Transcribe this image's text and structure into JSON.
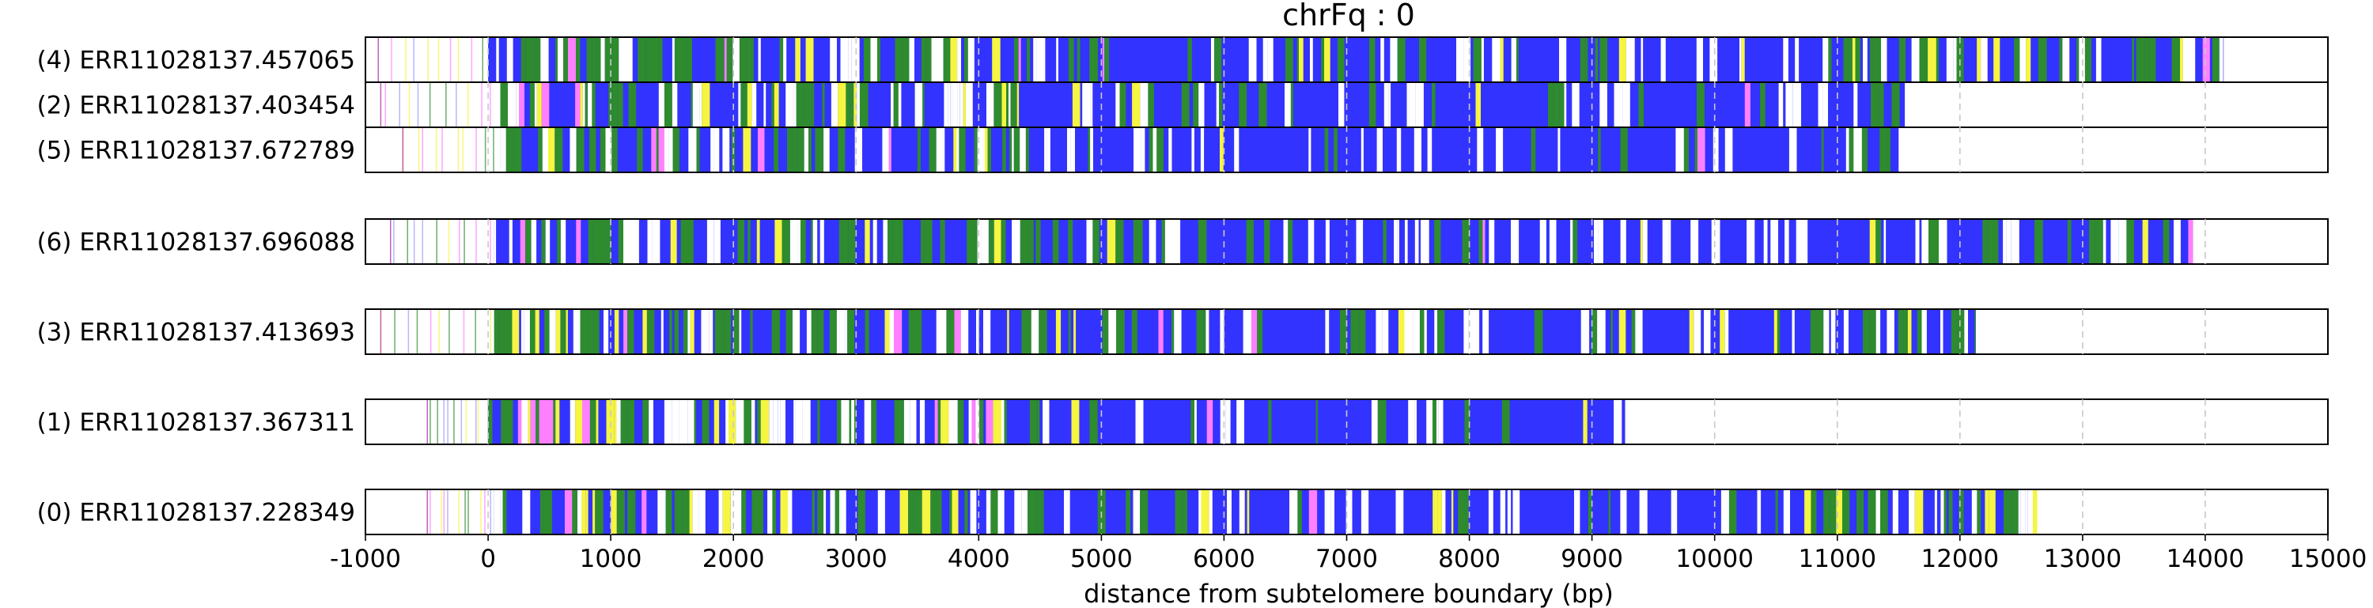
{
  "chart_data": {
    "type": "heatmap",
    "title": "chrFq : 0",
    "xlabel": "distance from subtelomere boundary (bp)",
    "ylabel": "",
    "xlim": [
      -1000,
      15000
    ],
    "x_ticks": [
      -1000,
      0,
      1000,
      2000,
      3000,
      4000,
      5000,
      6000,
      7000,
      8000,
      9000,
      10000,
      11000,
      12000,
      13000,
      14000,
      15000
    ],
    "x_tick_labels": [
      "-1000",
      "0",
      "1000",
      "2000",
      "3000",
      "4000",
      "5000",
      "6000",
      "7000",
      "8000",
      "9000",
      "10000",
      "11000",
      "12000",
      "13000",
      "14000",
      "15000"
    ],
    "grid": "vertical dashed at x ticks",
    "legend": "none",
    "category_colors": {
      "canonical_repeat": "#3333ff",
      "variant_a": "#2e8b2e",
      "variant_b": "#f5f542",
      "variant_c": "#ff80ff",
      "gap": "#ffffff"
    },
    "groups": [
      [
        {
          "label": "(4) ERR11028137.457065",
          "start": -900,
          "end": 14150,
          "dense_start": 0
        },
        {
          "label": "(2) ERR11028137.403454",
          "start": -880,
          "end": 11550,
          "dense_start": 100
        },
        {
          "label": "(5) ERR11028137.672789",
          "start": -700,
          "end": 11500,
          "dense_start": 100
        }
      ],
      [
        {
          "label": "(6) ERR11028137.696088",
          "start": -800,
          "end": 13900,
          "dense_start": 50
        }
      ],
      [
        {
          "label": "(3) ERR11028137.413693",
          "start": -880,
          "end": 12130,
          "dense_start": 50
        }
      ],
      [
        {
          "label": "(1) ERR11028137.367311",
          "start": -500,
          "end": 9270,
          "dense_start": 0
        }
      ],
      [
        {
          "label": "(0) ERR11028137.228349",
          "start": -500,
          "end": 12630,
          "dense_start": 50
        }
      ]
    ]
  }
}
